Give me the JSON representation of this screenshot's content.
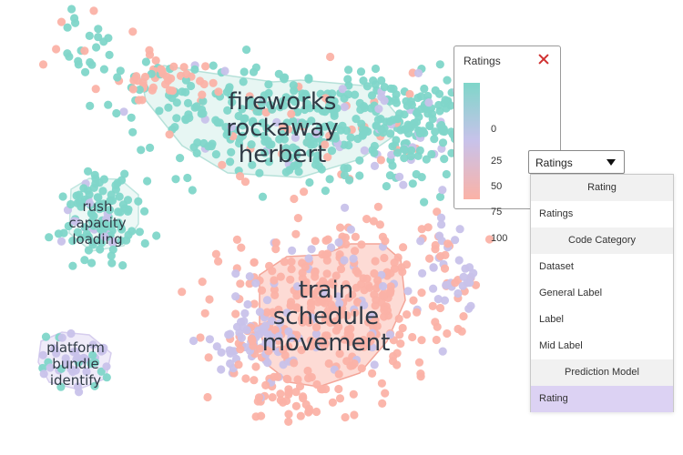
{
  "clusters": [
    {
      "lines": [
        "fireworks",
        "rockaway",
        "herbert"
      ]
    },
    {
      "lines": [
        "rush",
        "capacity",
        "loading"
      ]
    },
    {
      "lines": [
        "train",
        "schedule",
        "movement"
      ]
    },
    {
      "lines": [
        "platform",
        "bundle",
        "identify"
      ]
    }
  ],
  "legend": {
    "title": "Ratings",
    "ticks": [
      "0",
      "25",
      "50",
      "75",
      "100"
    ],
    "gradient_colors": [
      "#7fd6c9",
      "#c8c2ea",
      "#fbb2a6"
    ]
  },
  "dropdown": {
    "selected_label": "Ratings",
    "items": [
      {
        "type": "header",
        "label": "Rating"
      },
      {
        "type": "option",
        "label": "Ratings"
      },
      {
        "type": "header",
        "label": "Code Category"
      },
      {
        "type": "option",
        "label": "Dataset"
      },
      {
        "type": "option",
        "label": "General Label"
      },
      {
        "type": "option",
        "label": "Label"
      },
      {
        "type": "option",
        "label": "Mid Label"
      },
      {
        "type": "header",
        "label": "Prediction Model"
      },
      {
        "type": "option",
        "label": "Rating",
        "selected": true
      }
    ]
  },
  "colors": {
    "teal": "#7fd6c9",
    "lavender": "#c8c2ea",
    "salmon": "#fbb2a6",
    "selected_bg": "#dcd2f3"
  }
}
